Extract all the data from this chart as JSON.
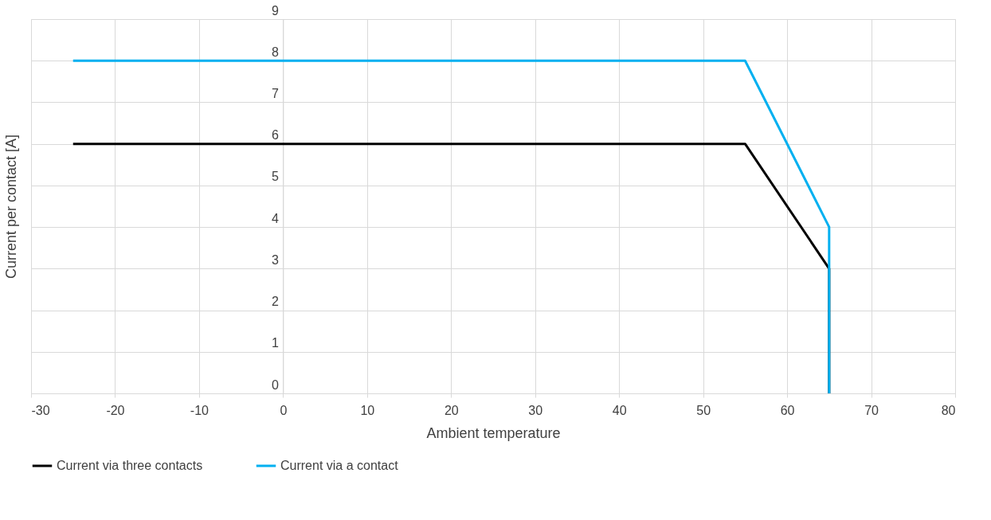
{
  "chart_data": {
    "type": "line",
    "xlabel": "Ambient temperature",
    "ylabel": "Current per contact [A]",
    "xlim": [
      -30,
      80
    ],
    "xticks": [
      -30,
      -20,
      -10,
      0,
      10,
      20,
      30,
      40,
      50,
      60,
      70,
      80
    ],
    "ylim": [
      0,
      9
    ],
    "yticks": [
      0,
      1,
      2,
      3,
      4,
      5,
      6,
      7,
      8,
      9
    ],
    "grid": true,
    "legend": "bottom",
    "marker": "none",
    "line_style": "solid",
    "series": [
      {
        "name": "Current via three contacts",
        "color": "#000000",
        "x": [
          -25,
          55,
          65,
          65
        ],
        "values": [
          6,
          6,
          3,
          0
        ]
      },
      {
        "name": "Current via a contact",
        "color": "#00b0f0",
        "x": [
          -25,
          55,
          65,
          65
        ],
        "values": [
          8,
          8,
          4,
          0
        ]
      }
    ]
  }
}
